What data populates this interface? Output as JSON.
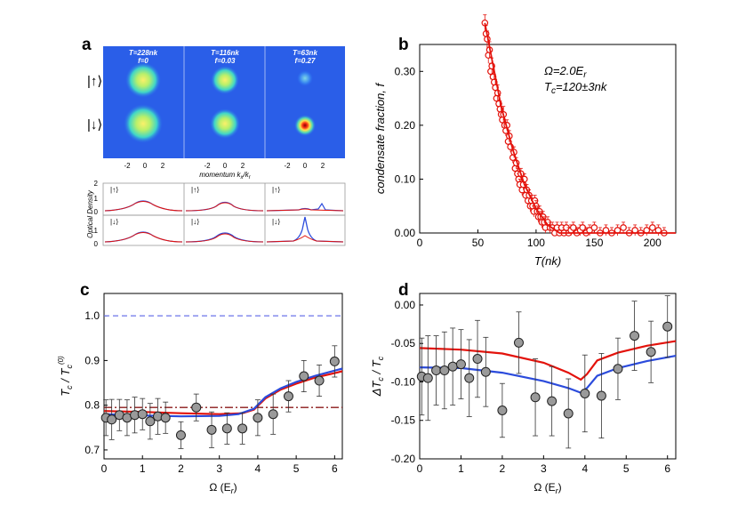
{
  "panel_labels": {
    "a": "a",
    "b": "b",
    "c": "c",
    "d": "d"
  },
  "panel_a": {
    "images": [
      {
        "t_label": "T=228nk",
        "f_label": "f=0"
      },
      {
        "t_label": "T=116nk",
        "f_label": "f=0.03"
      },
      {
        "t_label": "T=63nk",
        "f_label": "f=0.27"
      }
    ],
    "row_labels": [
      "|↑⟩",
      "|↓⟩"
    ],
    "momentum_ticks": [
      "-2",
      "0",
      "2"
    ],
    "momentum_label": "momentum k",
    "momentum_sub_x": "x",
    "momentum_sub_r": "r",
    "od_label": "Optical Density",
    "od_ticks": [
      "0",
      "1",
      "2"
    ],
    "profile_labels": [
      "|↑⟩",
      "|↓⟩"
    ]
  },
  "chart_data": [
    {
      "type": "scatter",
      "panel": "b",
      "xlabel": "T(nk)",
      "ylabel": "condensate fraction, f",
      "xlim": [
        0,
        220
      ],
      "ylim": [
        0,
        0.35
      ],
      "xticks": [
        "0",
        "50",
        "100",
        "150",
        "200"
      ],
      "yticks": [
        "0.00",
        "0.10",
        "0.20",
        "0.30"
      ],
      "annotation_line1": "Ω=2.0E",
      "annotation_line1_sub": "r",
      "annotation_line2": "T",
      "annotation_line2_sub": "c",
      "annotation_line2_rest": "=120±3nk",
      "points": [
        [
          56,
          0.39
        ],
        [
          57,
          0.37
        ],
        [
          58,
          0.36
        ],
        [
          59,
          0.33
        ],
        [
          60,
          0.34
        ],
        [
          61,
          0.3
        ],
        [
          62,
          0.31
        ],
        [
          63,
          0.29
        ],
        [
          64,
          0.28
        ],
        [
          65,
          0.27
        ],
        [
          66,
          0.25
        ],
        [
          67,
          0.26
        ],
        [
          68,
          0.24
        ],
        [
          69,
          0.23
        ],
        [
          70,
          0.22
        ],
        [
          71,
          0.21
        ],
        [
          72,
          0.22
        ],
        [
          73,
          0.2
        ],
        [
          74,
          0.19
        ],
        [
          75,
          0.2
        ],
        [
          76,
          0.17
        ],
        [
          77,
          0.18
        ],
        [
          78,
          0.16
        ],
        [
          80,
          0.14
        ],
        [
          81,
          0.15
        ],
        [
          82,
          0.12
        ],
        [
          83,
          0.13
        ],
        [
          84,
          0.11
        ],
        [
          85,
          0.1
        ],
        [
          86,
          0.09
        ],
        [
          87,
          0.11
        ],
        [
          88,
          0.08
        ],
        [
          89,
          0.09
        ],
        [
          90,
          0.1
        ],
        [
          91,
          0.07
        ],
        [
          92,
          0.08
        ],
        [
          93,
          0.06
        ],
        [
          94,
          0.07
        ],
        [
          95,
          0.05
        ],
        [
          96,
          0.06
        ],
        [
          97,
          0.05
        ],
        [
          98,
          0.04
        ],
        [
          99,
          0.06
        ],
        [
          100,
          0.05
        ],
        [
          101,
          0.04
        ],
        [
          102,
          0.03
        ],
        [
          103,
          0.04
        ],
        [
          104,
          0.03
        ],
        [
          105,
          0.02
        ],
        [
          106,
          0.03
        ],
        [
          107,
          0.02
        ],
        [
          108,
          0.01
        ],
        [
          110,
          0.02
        ],
        [
          112,
          0.01
        ],
        [
          114,
          0.01
        ],
        [
          116,
          0.0
        ],
        [
          118,
          0.01
        ],
        [
          120,
          0.0
        ],
        [
          122,
          0.01
        ],
        [
          124,
          0.0
        ],
        [
          126,
          0.01
        ],
        [
          128,
          0.0
        ],
        [
          130,
          0.005
        ],
        [
          132,
          0.01
        ],
        [
          135,
          0.0
        ],
        [
          138,
          0.005
        ],
        [
          140,
          0.01
        ],
        [
          143,
          0.0
        ],
        [
          146,
          0.005
        ],
        [
          150,
          0.01
        ],
        [
          155,
          0.0
        ],
        [
          160,
          0.005
        ],
        [
          165,
          0.0
        ],
        [
          170,
          0.005
        ],
        [
          175,
          0.01
        ],
        [
          180,
          0.0
        ],
        [
          185,
          0.005
        ],
        [
          190,
          0.0
        ],
        [
          195,
          0.005
        ],
        [
          200,
          0.01
        ],
        [
          205,
          0.005
        ],
        [
          210,
          0.0
        ]
      ],
      "fit_curve": [
        [
          56,
          0.39
        ],
        [
          70,
          0.235
        ],
        [
          80,
          0.155
        ],
        [
          90,
          0.09
        ],
        [
          100,
          0.045
        ],
        [
          110,
          0.015
        ],
        [
          120,
          0.0
        ],
        [
          220,
          0.0
        ]
      ]
    },
    {
      "type": "scatter",
      "panel": "c",
      "xlabel": "Ω (E",
      "xlabel_sub": "r",
      "xlabel_close": ")",
      "ylabel": "T",
      "ylabel_sub": "c",
      "ylabel_rest": " / T",
      "ylabel_sub2": "c",
      "ylabel_sup": "(0)",
      "xlim": [
        0,
        6.2
      ],
      "ylim": [
        0.68,
        1.05
      ],
      "xticks": [
        "0",
        "1",
        "2",
        "3",
        "4",
        "5",
        "6"
      ],
      "yticks": [
        "0.7",
        "0.8",
        "0.9",
        "1.0"
      ],
      "points": [
        {
          "x": 0.05,
          "y": 0.772,
          "e": 0.04
        },
        {
          "x": 0.2,
          "y": 0.768,
          "e": 0.045
        },
        {
          "x": 0.4,
          "y": 0.778,
          "e": 0.035
        },
        {
          "x": 0.6,
          "y": 0.772,
          "e": 0.04
        },
        {
          "x": 0.8,
          "y": 0.778,
          "e": 0.04
        },
        {
          "x": 1.0,
          "y": 0.78,
          "e": 0.035
        },
        {
          "x": 1.2,
          "y": 0.764,
          "e": 0.04
        },
        {
          "x": 1.4,
          "y": 0.775,
          "e": 0.04
        },
        {
          "x": 1.6,
          "y": 0.772,
          "e": 0.035
        },
        {
          "x": 2.0,
          "y": 0.733,
          "e": 0.03
        },
        {
          "x": 2.4,
          "y": 0.795,
          "e": 0.03
        },
        {
          "x": 2.8,
          "y": 0.745,
          "e": 0.04
        },
        {
          "x": 3.2,
          "y": 0.748,
          "e": 0.035
        },
        {
          "x": 3.6,
          "y": 0.748,
          "e": 0.035
        },
        {
          "x": 4.0,
          "y": 0.772,
          "e": 0.04
        },
        {
          "x": 4.4,
          "y": 0.78,
          "e": 0.045
        },
        {
          "x": 4.8,
          "y": 0.82,
          "e": 0.035
        },
        {
          "x": 5.2,
          "y": 0.865,
          "e": 0.035
        },
        {
          "x": 5.6,
          "y": 0.855,
          "e": 0.035
        },
        {
          "x": 6.0,
          "y": 0.898,
          "e": 0.035
        }
      ],
      "series": [
        {
          "color": "#e3120b",
          "values": [
            [
              0,
              0.787
            ],
            [
              1,
              0.785
            ],
            [
              2,
              0.782
            ],
            [
              3,
              0.78
            ],
            [
              3.6,
              0.782
            ],
            [
              3.9,
              0.79
            ],
            [
              4.2,
              0.815
            ],
            [
              4.6,
              0.835
            ],
            [
              5,
              0.848
            ],
            [
              5.5,
              0.862
            ],
            [
              6.2,
              0.876
            ]
          ]
        },
        {
          "color": "#2b4bdc",
          "values": [
            [
              0,
              0.78
            ],
            [
              1,
              0.777
            ],
            [
              2,
              0.775
            ],
            [
              3,
              0.776
            ],
            [
              3.5,
              0.78
            ],
            [
              3.9,
              0.792
            ],
            [
              4.2,
              0.818
            ],
            [
              4.6,
              0.838
            ],
            [
              5,
              0.852
            ],
            [
              5.5,
              0.866
            ],
            [
              6.2,
              0.882
            ]
          ]
        }
      ],
      "hlines": [
        {
          "y": 1.0,
          "color": "#6b74e8",
          "style": "dashed"
        },
        {
          "y": 0.795,
          "color": "#8b1a1a",
          "style": "dashdot"
        }
      ]
    },
    {
      "type": "scatter",
      "panel": "d",
      "xlabel": "Ω (E",
      "xlabel_sub": "r",
      "xlabel_close": ")",
      "ylabel": "ΔT",
      "ylabel_sub": "c",
      "ylabel_rest": " / T",
      "ylabel_sub2": "c",
      "xlim": [
        0,
        6.2
      ],
      "ylim": [
        -0.2,
        0.015
      ],
      "xticks": [
        "0",
        "1",
        "2",
        "3",
        "4",
        "5",
        "6"
      ],
      "yticks": [
        "0.00",
        "-0.05",
        "-0.10",
        "-0.15",
        "-0.20"
      ],
      "points": [
        {
          "x": 0.05,
          "y": -0.093,
          "e": 0.05
        },
        {
          "x": 0.2,
          "y": -0.095,
          "e": 0.055
        },
        {
          "x": 0.4,
          "y": -0.085,
          "e": 0.045
        },
        {
          "x": 0.6,
          "y": -0.085,
          "e": 0.05
        },
        {
          "x": 0.8,
          "y": -0.08,
          "e": 0.05
        },
        {
          "x": 1.0,
          "y": -0.077,
          "e": 0.045
        },
        {
          "x": 1.2,
          "y": -0.095,
          "e": 0.05
        },
        {
          "x": 1.4,
          "y": -0.07,
          "e": 0.05
        },
        {
          "x": 1.6,
          "y": -0.087,
          "e": 0.045
        },
        {
          "x": 2.0,
          "y": -0.137,
          "e": 0.035
        },
        {
          "x": 2.4,
          "y": -0.049,
          "e": 0.04
        },
        {
          "x": 2.8,
          "y": -0.12,
          "e": 0.05
        },
        {
          "x": 3.2,
          "y": -0.125,
          "e": 0.045
        },
        {
          "x": 3.6,
          "y": -0.141,
          "e": 0.045
        },
        {
          "x": 4.0,
          "y": -0.115,
          "e": 0.05
        },
        {
          "x": 4.4,
          "y": -0.118,
          "e": 0.055
        },
        {
          "x": 4.8,
          "y": -0.083,
          "e": 0.04
        },
        {
          "x": 5.2,
          "y": -0.04,
          "e": 0.045
        },
        {
          "x": 5.6,
          "y": -0.061,
          "e": 0.04
        },
        {
          "x": 6.0,
          "y": -0.028,
          "e": 0.04
        }
      ],
      "series": [
        {
          "color": "#e3120b",
          "values": [
            [
              0,
              -0.056
            ],
            [
              1,
              -0.058
            ],
            [
              2,
              -0.063
            ],
            [
              3,
              -0.075
            ],
            [
              3.6,
              -0.088
            ],
            [
              3.9,
              -0.097
            ],
            [
              4.05,
              -0.09
            ],
            [
              4.3,
              -0.072
            ],
            [
              4.8,
              -0.062
            ],
            [
              5.5,
              -0.053
            ],
            [
              6.2,
              -0.047
            ]
          ]
        },
        {
          "color": "#2b4bdc",
          "values": [
            [
              0,
              -0.081
            ],
            [
              1,
              -0.082
            ],
            [
              2,
              -0.088
            ],
            [
              3,
              -0.099
            ],
            [
              3.6,
              -0.108
            ],
            [
              3.9,
              -0.114
            ],
            [
              4.05,
              -0.108
            ],
            [
              4.3,
              -0.092
            ],
            [
              4.8,
              -0.082
            ],
            [
              5.5,
              -0.073
            ],
            [
              6.2,
              -0.066
            ]
          ]
        }
      ]
    }
  ]
}
